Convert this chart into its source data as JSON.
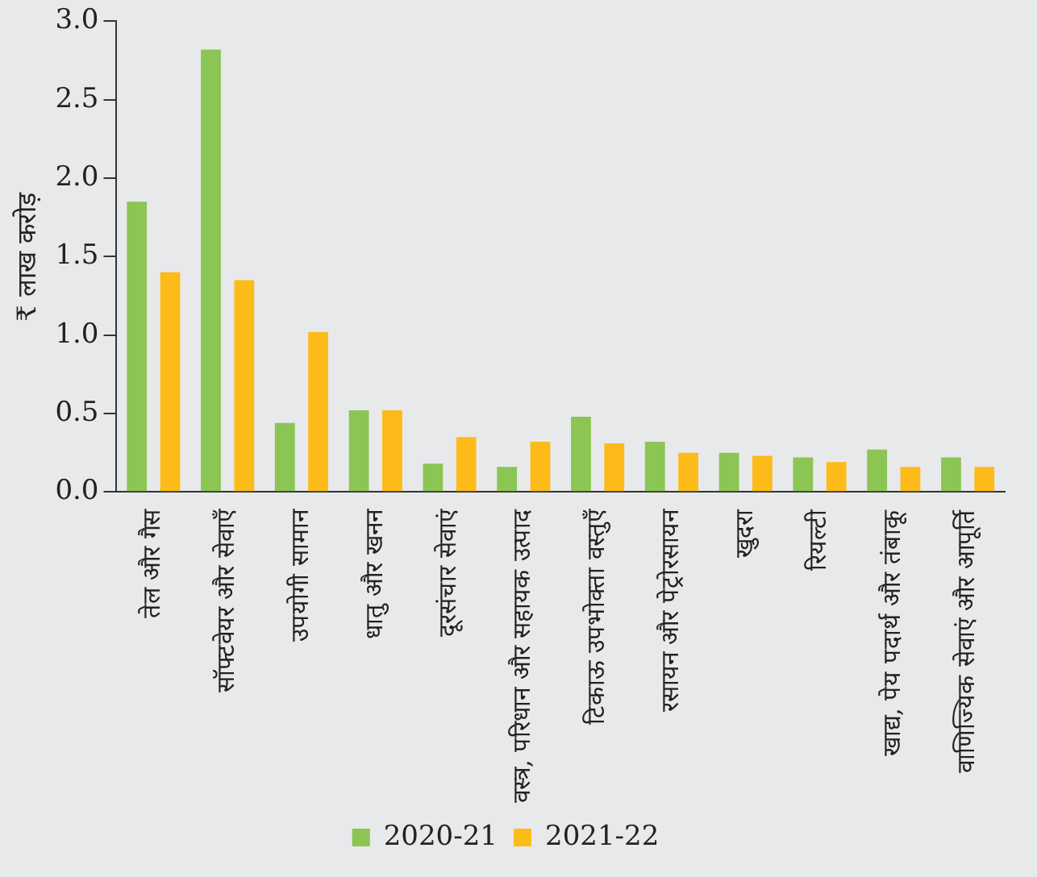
{
  "chart_data": {
    "type": "bar",
    "ylabel": "₹ लाख करोड़",
    "categories": [
      "तेल और गैस",
      "सॉफ्टवेयर और सेवाएँ",
      "उपयोगी सामान",
      "धातु और खनन",
      "दूरसंचार सेवाएं",
      "वस्त्र, परिधान और सहायक उत्पाद",
      "टिकाऊ उपभोक्ता वस्तुएँ",
      "रसायन और पेट्रोरसायन",
      "खुदरा",
      "रियल्टी",
      "खाद्य, पेय पदार्थ और तंबाकू",
      "वाणिज्यिक सेवाएं और आपूर्ति"
    ],
    "series": [
      {
        "name": "2020-21",
        "color": "#8bc554",
        "values": [
          1.85,
          2.82,
          0.44,
          0.52,
          0.18,
          0.16,
          0.48,
          0.32,
          0.25,
          0.22,
          0.27,
          0.22
        ]
      },
      {
        "name": "2021-22",
        "color": "#fdbb1a",
        "values": [
          1.4,
          1.35,
          1.02,
          0.52,
          0.35,
          0.32,
          0.31,
          0.25,
          0.23,
          0.19,
          0.16,
          0.16
        ]
      }
    ],
    "ylim": [
      0,
      3.0
    ],
    "yticks": [
      {
        "value": 0,
        "label": "0.0"
      },
      {
        "value": 0.5,
        "label": "0.5"
      },
      {
        "value": 1,
        "label": "1.0"
      },
      {
        "value": 1.5,
        "label": "1.5"
      },
      {
        "value": 2,
        "label": "2.0"
      },
      {
        "value": 2.5,
        "label": "2.5"
      },
      {
        "value": 3,
        "label": "3.0"
      }
    ],
    "grid": false,
    "legend": "bottom"
  }
}
